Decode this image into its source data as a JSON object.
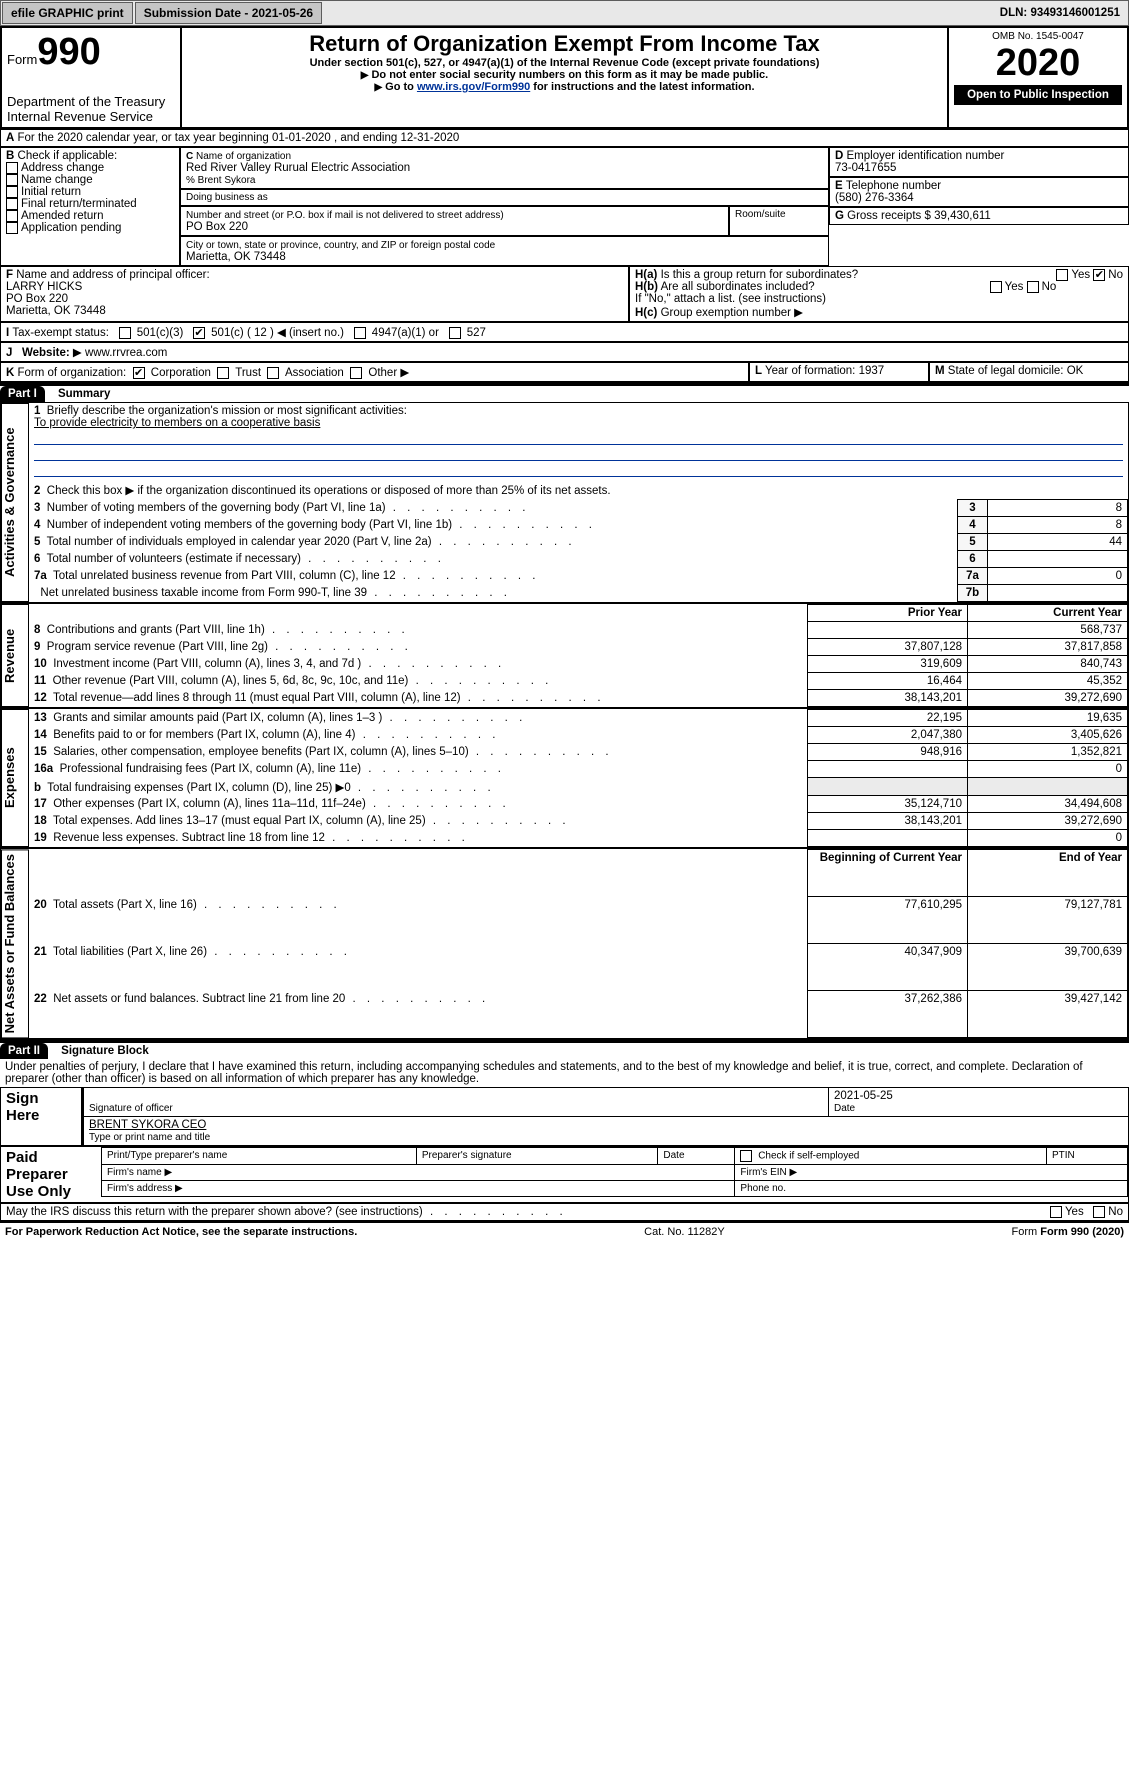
{
  "topbar": {
    "efile": "efile GRAPHIC print",
    "submission": "Submission Date - 2021-05-26",
    "dln": "DLN: 93493146001251"
  },
  "header": {
    "form_label": "Form",
    "form_num": "990",
    "dept": "Department of the Treasury\nInternal Revenue Service",
    "title": "Return of Organization Exempt From Income Tax",
    "sub1": "Under section 501(c), 527, or 4947(a)(1) of the Internal Revenue Code (except private foundations)",
    "sub2": "Do not enter social security numbers on this form as it may be made public.",
    "sub3_pre": "Go to ",
    "sub3_link": "www.irs.gov/Form990",
    "sub3_post": " for instructions and the latest information.",
    "omb": "OMB No. 1545-0047",
    "year": "2020",
    "open": "Open to Public Inspection"
  },
  "A": {
    "text": "For the 2020 calendar year, or tax year beginning 01-01-2020   , and ending 12-31-2020"
  },
  "B": {
    "label": "Check if applicable:",
    "items": [
      "Address change",
      "Name change",
      "Initial return",
      "Final return/terminated",
      "Amended return",
      "Application pending"
    ]
  },
  "C": {
    "name_lbl": "Name of organization",
    "name": "Red River Valley Rurual Electric Association",
    "care_lbl": "% Brent Sykora",
    "dba_lbl": "Doing business as",
    "addr_lbl": "Number and street (or P.O. box if mail is not delivered to street address)",
    "addr": "PO Box 220",
    "room_lbl": "Room/suite",
    "city_lbl": "City or town, state or province, country, and ZIP or foreign postal code",
    "city": "Marietta, OK  73448"
  },
  "D": {
    "lbl": "Employer identification number",
    "val": "73-0417655"
  },
  "E": {
    "lbl": "Telephone number",
    "val": "(580) 276-3364"
  },
  "G": {
    "lbl": "Gross receipts $",
    "val": "39,430,611"
  },
  "F": {
    "lbl": "Name and address of principal officer:",
    "name": "LARRY HICKS",
    "addr": "PO Box 220",
    "city": "Marietta, OK  73448"
  },
  "H": {
    "a": "Is this a group return for subordinates?",
    "b": "Are all subordinates included?",
    "b_note": "If \"No,\" attach a list. (see instructions)",
    "c": "Group exemption number",
    "yes": "Yes",
    "no": "No"
  },
  "I": {
    "lbl": "Tax-exempt status:",
    "opts": [
      "501(c)(3)",
      "501(c) ( 12 )",
      "(insert no.)",
      "4947(a)(1) or",
      "527"
    ]
  },
  "J": {
    "lbl": "Website:",
    "val": "www.rrvrea.com"
  },
  "K": {
    "lbl": "Form of organization:",
    "opts": [
      "Corporation",
      "Trust",
      "Association",
      "Other"
    ]
  },
  "L": {
    "lbl": "Year of formation:",
    "val": "1937"
  },
  "M": {
    "lbl": "State of legal domicile:",
    "val": "OK"
  },
  "part1": {
    "hdr": "Part I",
    "title": "Summary",
    "q1": "Briefly describe the organization's mission or most significant activities:",
    "q1a": "To provide electricity to members on a cooperative basis",
    "q2": "Check this box ▶      if the organization discontinued its operations or disposed of more than 25% of its net assets.",
    "rows_top": [
      {
        "n": "3",
        "t": "Number of voting members of the governing body (Part VI, line 1a)",
        "k": "3",
        "v": "8"
      },
      {
        "n": "4",
        "t": "Number of independent voting members of the governing body (Part VI, line 1b)",
        "k": "4",
        "v": "8"
      },
      {
        "n": "5",
        "t": "Total number of individuals employed in calendar year 2020 (Part V, line 2a)",
        "k": "5",
        "v": "44"
      },
      {
        "n": "6",
        "t": "Total number of volunteers (estimate if necessary)",
        "k": "6",
        "v": ""
      },
      {
        "n": "7a",
        "t": "Total unrelated business revenue from Part VIII, column (C), line 12",
        "k": "7a",
        "v": "0"
      },
      {
        "n": "",
        "t": "Net unrelated business taxable income from Form 990-T, line 39",
        "k": "7b",
        "v": ""
      }
    ],
    "col_prior": "Prior Year",
    "col_current": "Current Year",
    "col_begin": "Beginning of Current Year",
    "col_end": "End of Year",
    "revenue": [
      {
        "n": "8",
        "t": "Contributions and grants (Part VIII, line 1h)",
        "p": "",
        "c": "568,737"
      },
      {
        "n": "9",
        "t": "Program service revenue (Part VIII, line 2g)",
        "p": "37,807,128",
        "c": "37,817,858"
      },
      {
        "n": "10",
        "t": "Investment income (Part VIII, column (A), lines 3, 4, and 7d )",
        "p": "319,609",
        "c": "840,743"
      },
      {
        "n": "11",
        "t": "Other revenue (Part VIII, column (A), lines 5, 6d, 8c, 9c, 10c, and 11e)",
        "p": "16,464",
        "c": "45,352"
      },
      {
        "n": "12",
        "t": "Total revenue—add lines 8 through 11 (must equal Part VIII, column (A), line 12)",
        "p": "38,143,201",
        "c": "39,272,690"
      }
    ],
    "expenses": [
      {
        "n": "13",
        "t": "Grants and similar amounts paid (Part IX, column (A), lines 1–3 )",
        "p": "22,195",
        "c": "19,635"
      },
      {
        "n": "14",
        "t": "Benefits paid to or for members (Part IX, column (A), line 4)",
        "p": "2,047,380",
        "c": "3,405,626"
      },
      {
        "n": "15",
        "t": "Salaries, other compensation, employee benefits (Part IX, column (A), lines 5–10)",
        "p": "948,916",
        "c": "1,352,821"
      },
      {
        "n": "16a",
        "t": "Professional fundraising fees (Part IX, column (A), line 11e)",
        "p": "",
        "c": "0"
      },
      {
        "n": "b",
        "t": "Total fundraising expenses (Part IX, column (D), line 25) ▶0",
        "p": "—",
        "c": "—"
      },
      {
        "n": "17",
        "t": "Other expenses (Part IX, column (A), lines 11a–11d, 11f–24e)",
        "p": "35,124,710",
        "c": "34,494,608"
      },
      {
        "n": "18",
        "t": "Total expenses. Add lines 13–17 (must equal Part IX, column (A), line 25)",
        "p": "38,143,201",
        "c": "39,272,690"
      },
      {
        "n": "19",
        "t": "Revenue less expenses. Subtract line 18 from line 12",
        "p": "",
        "c": "0"
      }
    ],
    "netassets": [
      {
        "n": "20",
        "t": "Total assets (Part X, line 16)",
        "p": "77,610,295",
        "c": "79,127,781"
      },
      {
        "n": "21",
        "t": "Total liabilities (Part X, line 26)",
        "p": "40,347,909",
        "c": "39,700,639"
      },
      {
        "n": "22",
        "t": "Net assets or fund balances. Subtract line 21 from line 20",
        "p": "37,262,386",
        "c": "39,427,142"
      }
    ],
    "sec_labels": {
      "gov": "Activities & Governance",
      "rev": "Revenue",
      "exp": "Expenses",
      "net": "Net Assets or Fund Balances"
    }
  },
  "part2": {
    "hdr": "Part II",
    "title": "Signature Block",
    "perjury": "Under penalties of perjury, I declare that I have examined this return, including accompanying schedules and statements, and to the best of my knowledge and belief, it is true, correct, and complete. Declaration of preparer (other than officer) is based on all information of which preparer has any knowledge.",
    "sign_here": "Sign Here",
    "sig_off": "Signature of officer",
    "date_lbl": "Date",
    "date_val": "2021-05-25",
    "name_title": "BRENT SYKORA  CEO",
    "name_title_lbl": "Type or print name and title",
    "paid": "Paid Preparer Use Only",
    "prep_name": "Print/Type preparer's name",
    "prep_sig": "Preparer's signature",
    "ptin": "PTIN",
    "self_emp": "Check       if self-employed",
    "firm_name": "Firm's name",
    "firm_ein": "Firm's EIN",
    "firm_addr": "Firm's address",
    "phone": "Phone no.",
    "discuss": "May the IRS discuss this return with the preparer shown above? (see instructions)"
  },
  "footer": {
    "paperwork": "For Paperwork Reduction Act Notice, see the separate instructions.",
    "cat": "Cat. No. 11282Y",
    "form": "Form 990 (2020)"
  },
  "colors": {
    "link": "#003399"
  }
}
